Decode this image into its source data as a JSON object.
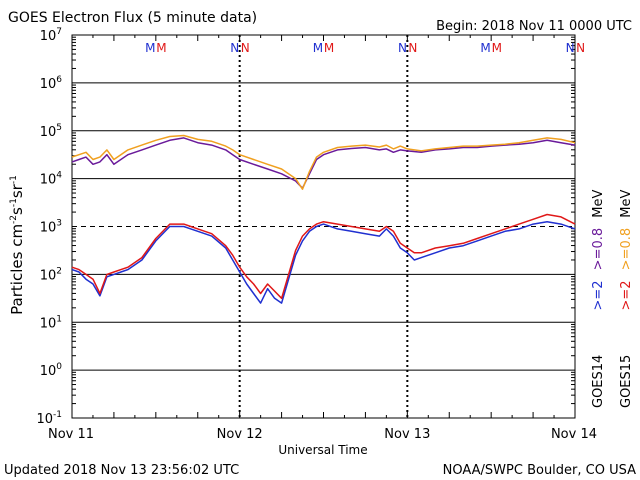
{
  "header": {
    "title": "GOES Electron Flux (5 minute data)",
    "begin": "Begin: 2018 Nov 11 0000 UTC"
  },
  "footer": {
    "updated": "Updated 2018 Nov 13 23:56:02 UTC",
    "credit": "NOAA/SWPC Boulder, CO USA"
  },
  "colors": {
    "goes14_ge2": "#2030d0",
    "goes15_ge2": "#e01818",
    "goes14_ge08": "#6a1a9a",
    "goes15_ge08": "#f0a020",
    "marker_m": "#2030d0",
    "marker_m2": "#e01818",
    "marker_n": "#2030d0",
    "marker_n2": "#e01818"
  },
  "chart_data": {
    "type": "line",
    "title": "GOES Electron Flux (5 minute data)",
    "xlabel": "Universal Time",
    "ylabel_main": "Particles cm",
    "ylabel_sup1": "-2",
    "ylabel_mid1": "s",
    "ylabel_sup2": "-1",
    "ylabel_mid2": "sr",
    "ylabel_sup3": "-1",
    "x_unit": "hours since 2018 Nov 11 0000 UTC",
    "xlim": [
      0,
      72
    ],
    "ylim_log10": [
      -1,
      7
    ],
    "y_scale": "log",
    "x_ticks": [
      {
        "x": 0,
        "label": "Nov 11"
      },
      {
        "x": 24,
        "label": "Nov 12"
      },
      {
        "x": 48,
        "label": "Nov 13"
      },
      {
        "x": 72,
        "label": "Nov 14"
      }
    ],
    "y_ticks": [
      {
        "exp": 7,
        "base": "10",
        "sup": "7"
      },
      {
        "exp": 6,
        "base": "10",
        "sup": "6"
      },
      {
        "exp": 5,
        "base": "10",
        "sup": "5"
      },
      {
        "exp": 4,
        "base": "10",
        "sup": "4"
      },
      {
        "exp": 3,
        "base": "10",
        "sup": "3"
      },
      {
        "exp": 2,
        "base": "10",
        "sup": "2"
      },
      {
        "exp": 1,
        "base": "10",
        "sup": "1"
      },
      {
        "exp": 0,
        "base": "10",
        "sup": "0"
      },
      {
        "exp": -1,
        "base": "10",
        "sup": "-1"
      }
    ],
    "threshold_log10": 3,
    "markers": [
      {
        "x": 11.2,
        "label": "M",
        "color": "#2030d0"
      },
      {
        "x": 12.8,
        "label": "M",
        "color": "#e01818"
      },
      {
        "x": 23.3,
        "label": "N",
        "color": "#2030d0"
      },
      {
        "x": 24.8,
        "label": "N",
        "color": "#e01818"
      },
      {
        "x": 35.2,
        "label": "M",
        "color": "#2030d0"
      },
      {
        "x": 36.8,
        "label": "M",
        "color": "#e01818"
      },
      {
        "x": 47.3,
        "label": "N",
        "color": "#2030d0"
      },
      {
        "x": 48.8,
        "label": "N",
        "color": "#e01818"
      },
      {
        "x": 59.2,
        "label": "M",
        "color": "#2030d0"
      },
      {
        "x": 60.8,
        "label": "M",
        "color": "#e01818"
      },
      {
        "x": 71.3,
        "label": "N",
        "color": "#2030d0"
      },
      {
        "x": 72.8,
        "label": "N",
        "color": "#e01818"
      }
    ],
    "legend": {
      "placement": "right",
      "sat_labels": [
        "GOES14",
        "GOES15"
      ],
      "entries": [
        {
          "satellite": "GOES14",
          "label": ">=2",
          "unit": "",
          "color": "#2030d0"
        },
        {
          "satellite": "GOES15",
          "label": ">=2",
          "unit": "",
          "color": "#e01818"
        },
        {
          "satellite": "GOES14",
          "label": ">=0.8",
          "unit": "MeV",
          "color": "#6a1a9a"
        },
        {
          "satellite": "GOES15",
          "label": ">=0.8",
          "unit": "MeV",
          "color": "#f0a020"
        }
      ]
    },
    "series": [
      {
        "color": "#6a1a9a",
        "x": [
          0,
          1,
          2,
          3,
          4,
          5,
          6,
          8,
          10,
          12,
          14,
          16,
          18,
          20,
          22,
          23,
          24,
          26,
          28,
          30,
          32,
          33,
          34,
          35,
          36,
          38,
          40,
          42,
          44,
          45,
          46,
          47,
          48,
          50,
          52,
          54,
          56,
          58,
          60,
          62,
          64,
          66,
          68,
          70,
          72
        ],
        "y": [
          4.35,
          4.4,
          4.45,
          4.3,
          4.35,
          4.5,
          4.3,
          4.5,
          4.6,
          4.7,
          4.8,
          4.85,
          4.75,
          4.7,
          4.6,
          4.5,
          4.4,
          4.3,
          4.2,
          4.1,
          3.95,
          3.8,
          4.1,
          4.4,
          4.5,
          4.6,
          4.63,
          4.65,
          4.6,
          4.62,
          4.55,
          4.6,
          4.58,
          4.55,
          4.6,
          4.62,
          4.65,
          4.65,
          4.68,
          4.7,
          4.72,
          4.75,
          4.8,
          4.75,
          4.7
        ]
      },
      {
        "color": "#f0a020",
        "x": [
          0,
          1,
          2,
          3,
          4,
          5,
          6,
          8,
          10,
          12,
          14,
          16,
          18,
          20,
          22,
          23,
          24,
          26,
          28,
          30,
          32,
          33,
          34,
          35,
          36,
          38,
          40,
          42,
          44,
          45,
          46,
          47,
          48,
          50,
          52,
          54,
          56,
          58,
          60,
          62,
          64,
          66,
          68,
          70,
          72
        ],
        "y": [
          4.45,
          4.5,
          4.55,
          4.4,
          4.45,
          4.6,
          4.4,
          4.6,
          4.7,
          4.8,
          4.88,
          4.9,
          4.82,
          4.78,
          4.68,
          4.6,
          4.5,
          4.4,
          4.3,
          4.2,
          4.0,
          3.78,
          4.15,
          4.45,
          4.55,
          4.65,
          4.68,
          4.7,
          4.66,
          4.7,
          4.62,
          4.68,
          4.62,
          4.58,
          4.62,
          4.65,
          4.68,
          4.68,
          4.7,
          4.72,
          4.75,
          4.8,
          4.85,
          4.82,
          4.75
        ]
      },
      {
        "color": "#2030d0",
        "x": [
          0,
          1,
          2,
          3,
          4,
          5,
          6,
          7,
          8,
          10,
          12,
          14,
          16,
          17,
          18,
          20,
          22,
          23,
          24,
          25,
          26,
          27,
          28,
          29,
          30,
          31,
          32,
          33,
          34,
          35,
          36,
          38,
          40,
          42,
          44,
          45,
          46,
          47,
          48,
          49,
          50,
          52,
          54,
          56,
          58,
          60,
          62,
          64,
          66,
          68,
          70,
          72
        ],
        "y": [
          2.1,
          2.05,
          1.9,
          1.8,
          1.55,
          1.95,
          2.0,
          2.05,
          2.1,
          2.3,
          2.7,
          3.0,
          3.0,
          2.95,
          2.9,
          2.8,
          2.55,
          2.3,
          2.05,
          1.8,
          1.6,
          1.4,
          1.7,
          1.5,
          1.4,
          1.9,
          2.4,
          2.7,
          2.9,
          3.0,
          3.05,
          2.95,
          2.9,
          2.85,
          2.8,
          2.95,
          2.8,
          2.55,
          2.45,
          2.3,
          2.35,
          2.45,
          2.55,
          2.6,
          2.7,
          2.8,
          2.9,
          2.95,
          3.05,
          3.1,
          3.05,
          2.95
        ]
      },
      {
        "color": "#e01818",
        "x": [
          0,
          1,
          2,
          3,
          4,
          5,
          6,
          7,
          8,
          10,
          12,
          14,
          16,
          17,
          18,
          20,
          22,
          23,
          24,
          25,
          26,
          27,
          28,
          29,
          30,
          31,
          32,
          33,
          34,
          35,
          36,
          38,
          40,
          42,
          44,
          45,
          46,
          47,
          48,
          49,
          50,
          52,
          54,
          56,
          58,
          60,
          62,
          64,
          66,
          68,
          70,
          72
        ],
        "y": [
          2.15,
          2.1,
          2.0,
          1.9,
          1.6,
          2.0,
          2.05,
          2.1,
          2.15,
          2.35,
          2.75,
          3.05,
          3.05,
          3.0,
          2.95,
          2.85,
          2.6,
          2.4,
          2.15,
          1.95,
          1.8,
          1.6,
          1.8,
          1.65,
          1.5,
          2.0,
          2.5,
          2.8,
          2.95,
          3.05,
          3.1,
          3.05,
          3.0,
          2.95,
          2.9,
          3.0,
          2.9,
          2.65,
          2.55,
          2.45,
          2.45,
          2.55,
          2.6,
          2.65,
          2.75,
          2.85,
          2.95,
          3.05,
          3.15,
          3.25,
          3.2,
          3.05
        ]
      }
    ]
  }
}
